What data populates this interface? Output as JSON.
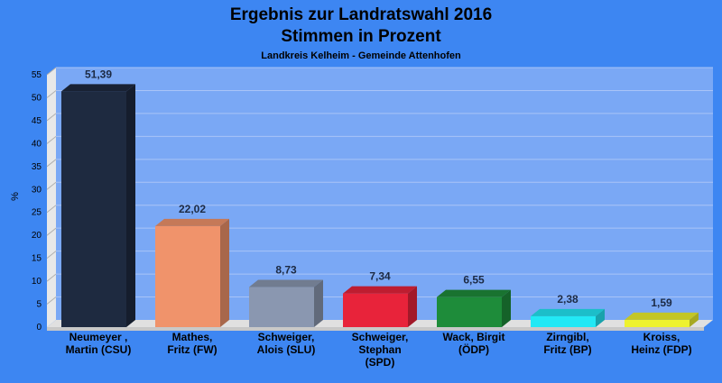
{
  "chart_data": {
    "type": "bar",
    "title": "Ergebnis zur Landratswahl 2016",
    "subtitle": "Stimmen in Prozent",
    "caption": "Landkreis Kelheim - Gemeinde Attenhofen",
    "xlabel": "",
    "ylabel": "%",
    "ylim": [
      0,
      55
    ],
    "yticks": [
      "0",
      "5",
      "10",
      "15",
      "20",
      "25",
      "30",
      "35",
      "40",
      "45",
      "50",
      "55"
    ],
    "grid": true,
    "categories": [
      [
        "Neumeyer ,",
        "Martin (CSU)"
      ],
      [
        "Mathes,",
        "Fritz (FW)"
      ],
      [
        "Schweiger,",
        "Alois (SLU)"
      ],
      [
        "Schweiger,",
        "Stephan",
        "(SPD)"
      ],
      [
        "Wack, Birgit",
        "(ÖDP)"
      ],
      [
        "Zirngibl,",
        "Fritz (BP)"
      ],
      [
        "Kroiss,",
        "Heinz (FDP)"
      ]
    ],
    "values": [
      51.39,
      22.02,
      8.73,
      7.34,
      6.55,
      2.38,
      1.59
    ],
    "value_labels": [
      "51,39",
      "22,02",
      "8,73",
      "7,34",
      "6,55",
      "2,38",
      "1,59"
    ],
    "colors": [
      "#1e2a40",
      "#f0936b",
      "#8a97b0",
      "#e8233a",
      "#1e8c3a",
      "#22e8f5",
      "#eef22e"
    ],
    "background_color": "#3d86f2",
    "plot_color": "#7aa8f5"
  }
}
